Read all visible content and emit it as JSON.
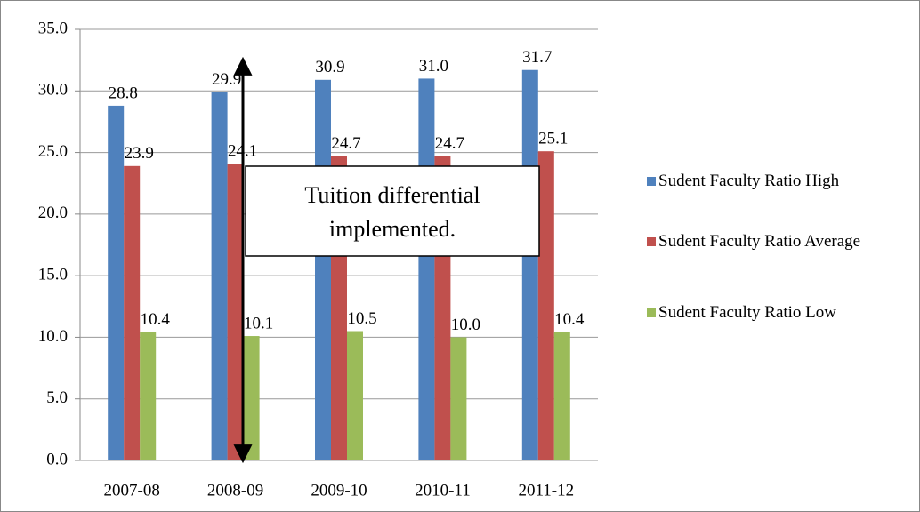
{
  "chart_data": {
    "type": "bar",
    "categories": [
      "2007-08",
      "2008-09",
      "2009-10",
      "2010-11",
      "2011-12"
    ],
    "series": [
      {
        "name": "Sudent Faculty Ratio High",
        "color": "#4f81bd",
        "values": [
          28.8,
          29.9,
          30.9,
          31.0,
          31.7
        ],
        "value_labels": [
          "28.8",
          "29.9",
          "30.9",
          "31.0",
          "31.7"
        ]
      },
      {
        "name": "Sudent Faculty Ratio Average",
        "color": "#c0504d",
        "values": [
          23.9,
          24.1,
          24.7,
          24.7,
          25.1
        ],
        "value_labels": [
          "23.9",
          "24.1",
          "24.7",
          "24.7",
          "25.1"
        ]
      },
      {
        "name": "Sudent Faculty Ratio Low",
        "color": "#9bbb59",
        "values": [
          10.4,
          10.1,
          10.5,
          10.0,
          10.4
        ],
        "value_labels": [
          "10.4",
          "10.1",
          "10.5",
          "10.0",
          "10.4"
        ]
      }
    ],
    "ylim": [
      0,
      35
    ],
    "yticks": [
      {
        "value": 0,
        "label": "0.0"
      },
      {
        "value": 5,
        "label": "5.0"
      },
      {
        "value": 10,
        "label": "10.0"
      },
      {
        "value": 15,
        "label": "15.0"
      },
      {
        "value": 20,
        "label": "20.0"
      },
      {
        "value": 25,
        "label": "25.0"
      },
      {
        "value": 30,
        "label": "30.0"
      },
      {
        "value": 35,
        "label": "35.0"
      }
    ],
    "grid": true,
    "legend": "right",
    "annotation": [
      "Tuition differential",
      "implemented."
    ]
  }
}
